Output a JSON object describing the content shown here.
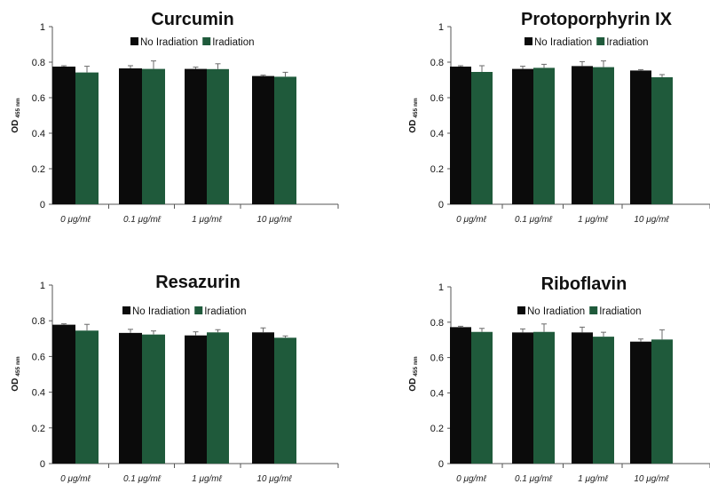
{
  "colors": {
    "no_irradiation": "#0b0b0b",
    "irradiation": "#1f5a3b",
    "axis": "#555555",
    "error_bar": "#6b6b6b"
  },
  "chart_data": [
    {
      "type": "bar",
      "title": "Curcumin",
      "ylabel_main": "OD",
      "ylabel_sub": "455 nm",
      "categories": [
        "0 μg/mℓ",
        "0.1 μg/mℓ",
        "1 μg/mℓ",
        "10 μg/mℓ"
      ],
      "yticks": [
        "0",
        "0.2",
        "0.4",
        "0.6",
        "0.8",
        "1"
      ],
      "ylim": [
        0,
        1
      ],
      "legend_position": "top-right",
      "series": [
        {
          "name": "No Iradiation",
          "values": [
            0.775,
            0.765,
            0.762,
            0.722
          ],
          "errors": [
            0.005,
            0.015,
            0.01,
            0.005
          ]
        },
        {
          "name": "Iradiation",
          "values": [
            0.742,
            0.762,
            0.761,
            0.718
          ],
          "errors": [
            0.035,
            0.045,
            0.03,
            0.025
          ]
        }
      ]
    },
    {
      "type": "bar",
      "title": "Protoporphyrin IX",
      "ylabel_main": "OD",
      "ylabel_sub": "455 nm",
      "categories": [
        "0 μg/mℓ",
        "0.1 μg/mℓ",
        "1 μg/mℓ",
        "10 μg/mℓ"
      ],
      "yticks": [
        "0",
        "0.2",
        "0.4",
        "0.6",
        "0.8",
        "1"
      ],
      "ylim": [
        0,
        1
      ],
      "legend_position": "top-right",
      "series": [
        {
          "name": "No Iradiation",
          "values": [
            0.775,
            0.762,
            0.778,
            0.753
          ],
          "errors": [
            0.005,
            0.015,
            0.025,
            0.005
          ]
        },
        {
          "name": "Iradiation",
          "values": [
            0.745,
            0.768,
            0.772,
            0.715
          ],
          "errors": [
            0.035,
            0.02,
            0.035,
            0.015
          ]
        }
      ]
    },
    {
      "type": "bar",
      "title": "Resazurin",
      "ylabel_main": "OD",
      "ylabel_sub": "455 nm",
      "categories": [
        "0 μg/mℓ",
        "0.1 μg/mℓ",
        "1 μg/mℓ",
        "10 μg/mℓ"
      ],
      "yticks": [
        "0",
        "0.2",
        "0.4",
        "0.6",
        "0.8",
        "1"
      ],
      "ylim": [
        0,
        1
      ],
      "legend_position": "top-right",
      "series": [
        {
          "name": "No Iradiation",
          "values": [
            0.778,
            0.732,
            0.718,
            0.735
          ],
          "errors": [
            0.005,
            0.02,
            0.02,
            0.025
          ]
        },
        {
          "name": "Iradiation",
          "values": [
            0.745,
            0.723,
            0.735,
            0.705
          ],
          "errors": [
            0.035,
            0.02,
            0.015,
            0.01
          ]
        }
      ]
    },
    {
      "type": "bar",
      "title": "Riboflavin",
      "ylabel_main": "OD",
      "ylabel_sub": "455 nm",
      "categories": [
        "0 μg/mℓ",
        "0.1 μg/mℓ",
        "1 μg/mℓ",
        "10 μg/mℓ"
      ],
      "yticks": [
        "0",
        "0.2",
        "0.4",
        "0.6",
        "0.8",
        "1"
      ],
      "ylim": [
        0,
        1
      ],
      "legend_position": "top-right",
      "series": [
        {
          "name": "No Iradiation",
          "values": [
            0.772,
            0.742,
            0.742,
            0.69
          ],
          "errors": [
            0.005,
            0.02,
            0.03,
            0.015
          ]
        },
        {
          "name": "Iradiation",
          "values": [
            0.745,
            0.745,
            0.718,
            0.702
          ],
          "errors": [
            0.02,
            0.045,
            0.025,
            0.055
          ]
        }
      ]
    }
  ]
}
